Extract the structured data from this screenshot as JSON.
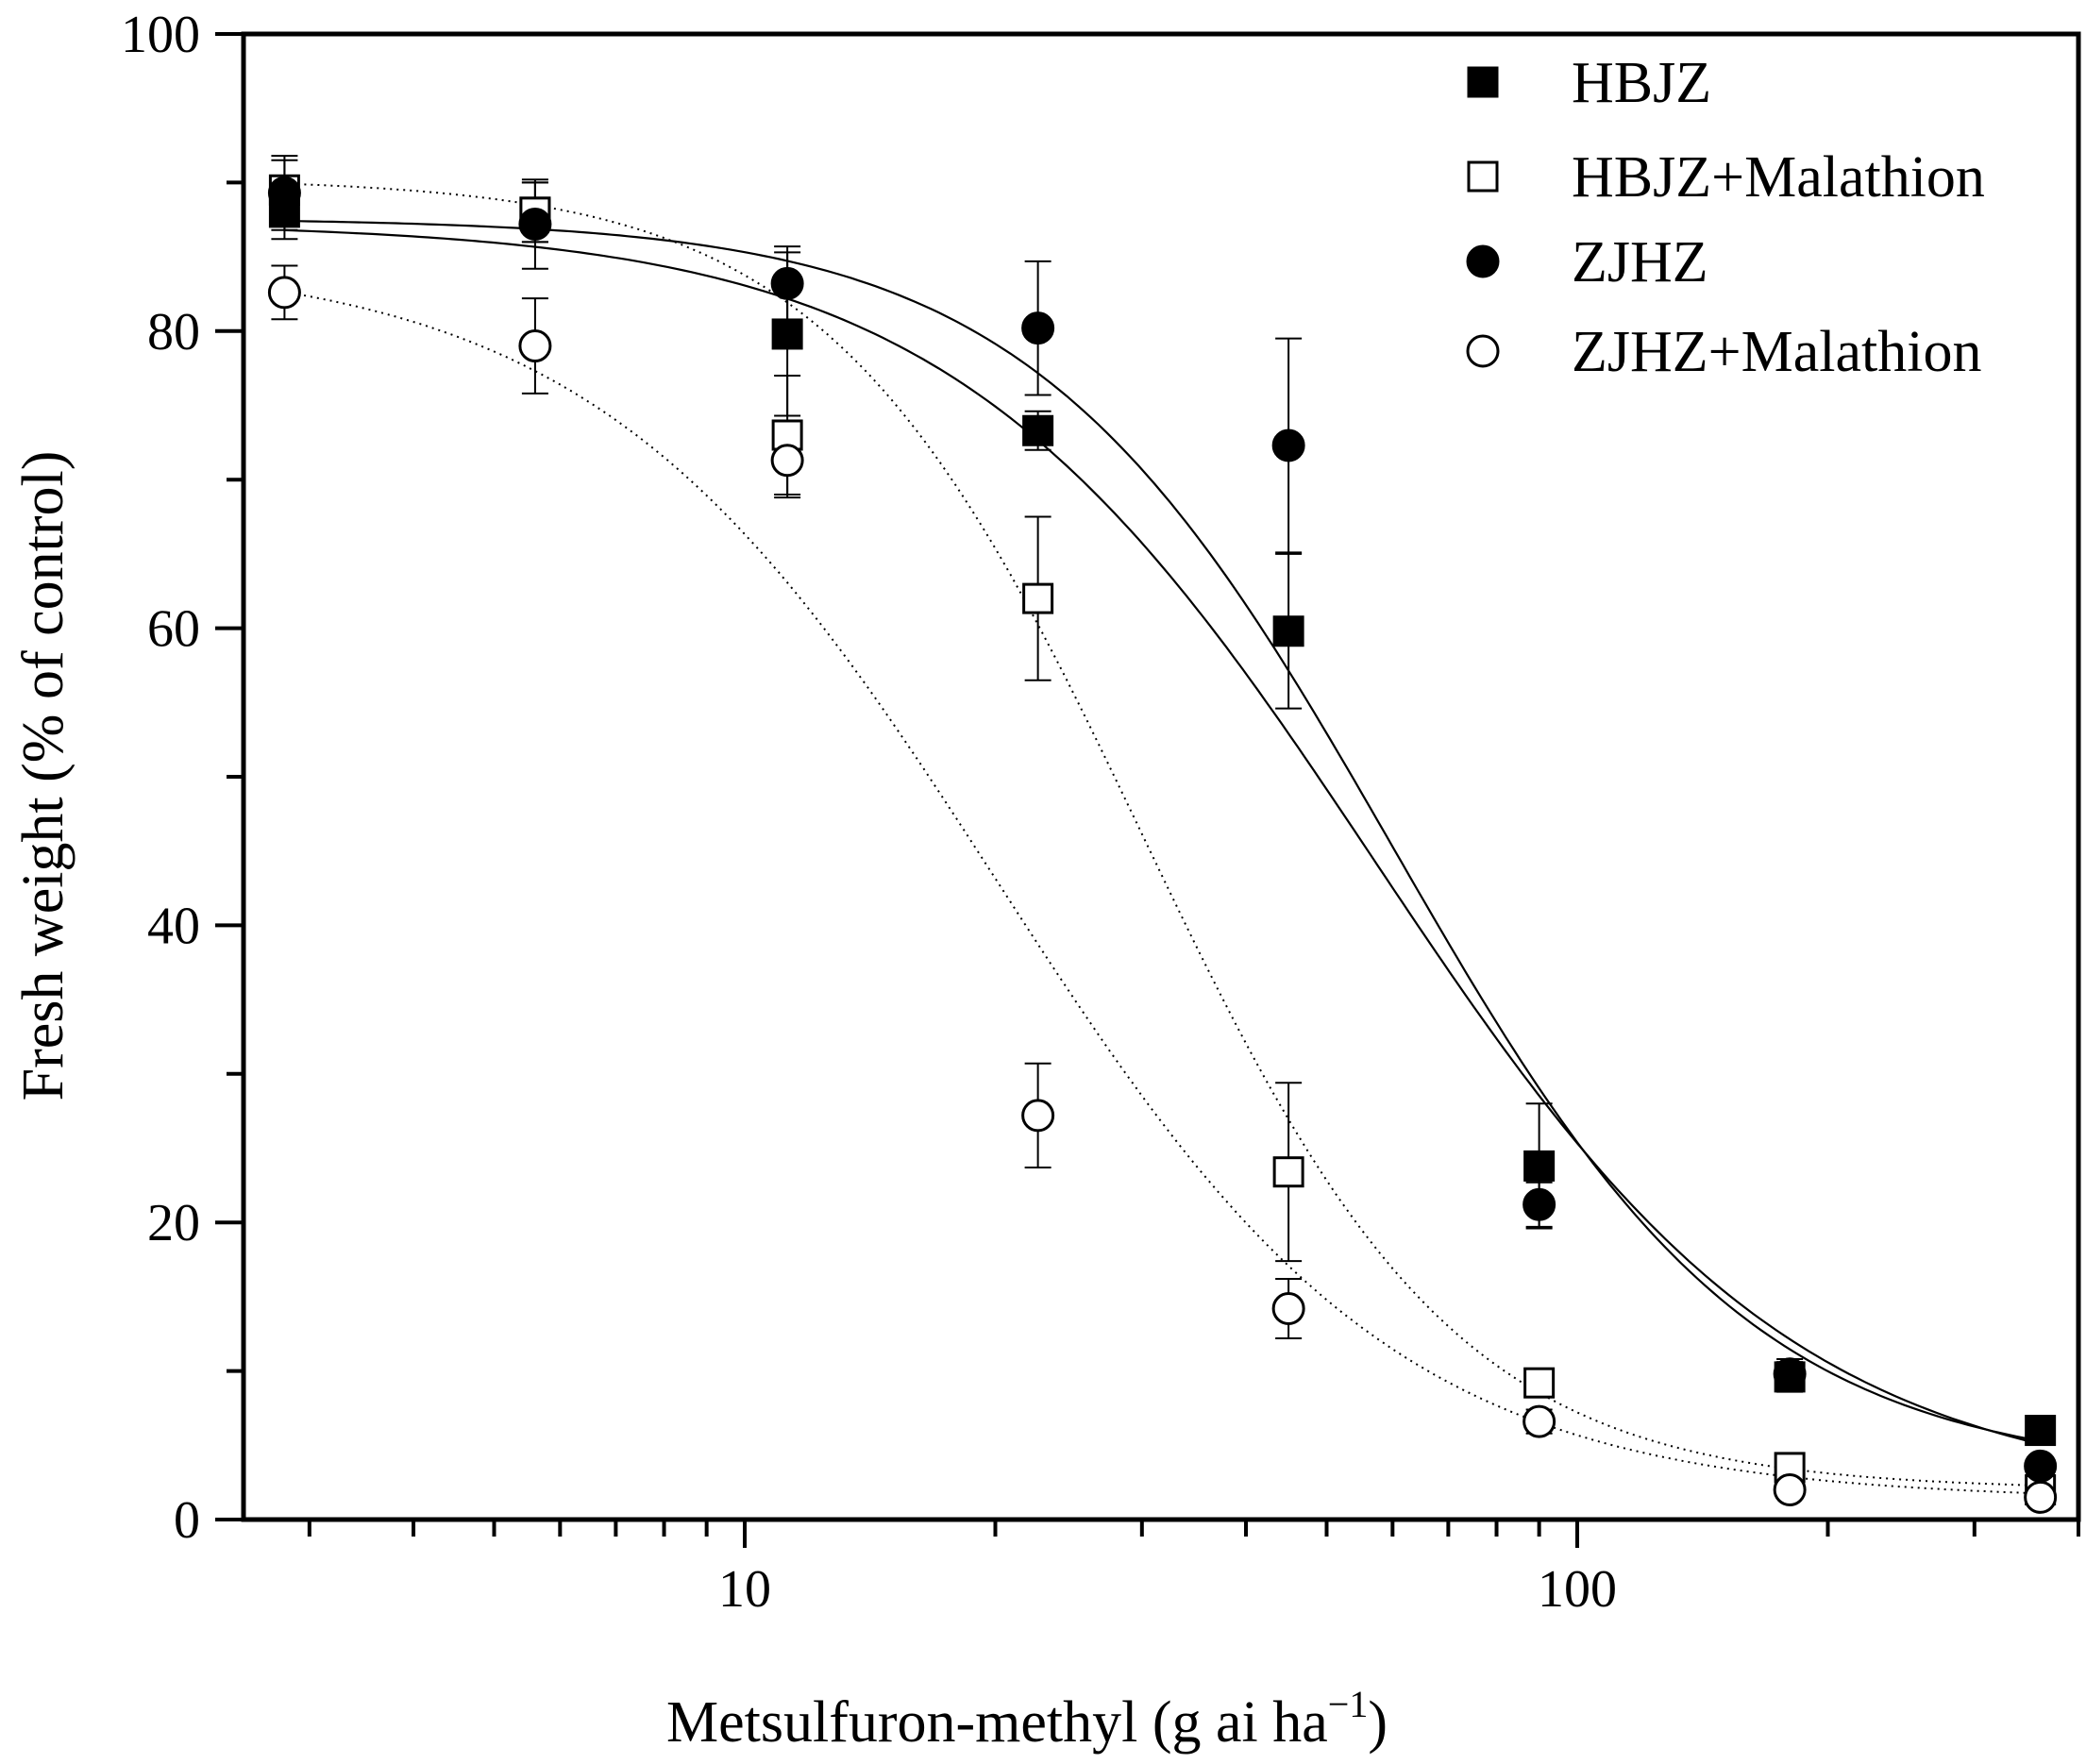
{
  "chart_data": {
    "type": "scatter",
    "title": "",
    "xlabel": "Metsulfuron-methyl (g ai ha",
    "xlabel_superscript": "−1",
    "xlabel_close": ")",
    "ylabel": "Fresh weight (% of control)",
    "xscale": "log",
    "xlim": [
      2.5,
      400
    ],
    "ylim": [
      0,
      100
    ],
    "x_major_ticks": [
      10,
      100
    ],
    "x_major_tick_labels": [
      "10",
      "100"
    ],
    "y_ticks": [
      0,
      20,
      40,
      60,
      80,
      100
    ],
    "y_tick_labels": [
      "0",
      "20",
      "40",
      "60",
      "80",
      "100"
    ],
    "legend_position": "top-right",
    "doses": [
      2.8,
      5.6,
      11.25,
      22.5,
      45,
      90,
      180,
      360
    ],
    "series": [
      {
        "name": "HBJZ",
        "marker": "filled-square",
        "fit_line": "solid",
        "values": [
          88,
          88,
          79.8,
          73.3,
          59.8,
          23.8,
          9.6,
          6.0
        ],
        "errors": [
          1.8,
          2.0,
          5.5,
          1.3,
          5.2,
          4.2,
          1.0,
          0.5
        ],
        "fit": {
          "top": 87.6,
          "bottom": 3.0,
          "ec50": 60,
          "slope": 2.0
        }
      },
      {
        "name": "HBJZ+Malathion",
        "marker": "open-square",
        "fit_line": "dotted",
        "values": [
          89.5,
          88,
          73,
          62,
          23.4,
          9.2,
          3.5,
          2.0
        ],
        "errors": [
          2.0,
          2.0,
          4.0,
          5.5,
          6.0,
          0.8,
          0.6,
          0.4
        ],
        "fit": {
          "top": 90.3,
          "bottom": 2.0,
          "ec50": 30,
          "slope": 2.3
        }
      },
      {
        "name": "ZJHZ",
        "marker": "filled-circle",
        "fit_line": "solid",
        "values": [
          89.3,
          87.2,
          83.2,
          80.2,
          72.3,
          21.2,
          9.8,
          3.6
        ],
        "errors": [
          2.5,
          3.0,
          2.5,
          4.5,
          7.2,
          1.5,
          1.0,
          0.6
        ],
        "fit": {
          "top": 87.3,
          "bottom": 1.5,
          "ec50": 57,
          "slope": 1.7
        }
      },
      {
        "name": "ZJHZ+Malathion",
        "marker": "open-circle",
        "fit_line": "dotted",
        "values": [
          82.6,
          79.0,
          71.3,
          27.2,
          14.2,
          6.6,
          2.0,
          1.5
        ],
        "errors": [
          1.8,
          3.2,
          2.5,
          3.5,
          2.0,
          0.8,
          0.4,
          0.4
        ],
        "fit": {
          "top": 85.0,
          "bottom": 1.3,
          "ec50": 20,
          "slope": 1.8
        }
      }
    ]
  }
}
